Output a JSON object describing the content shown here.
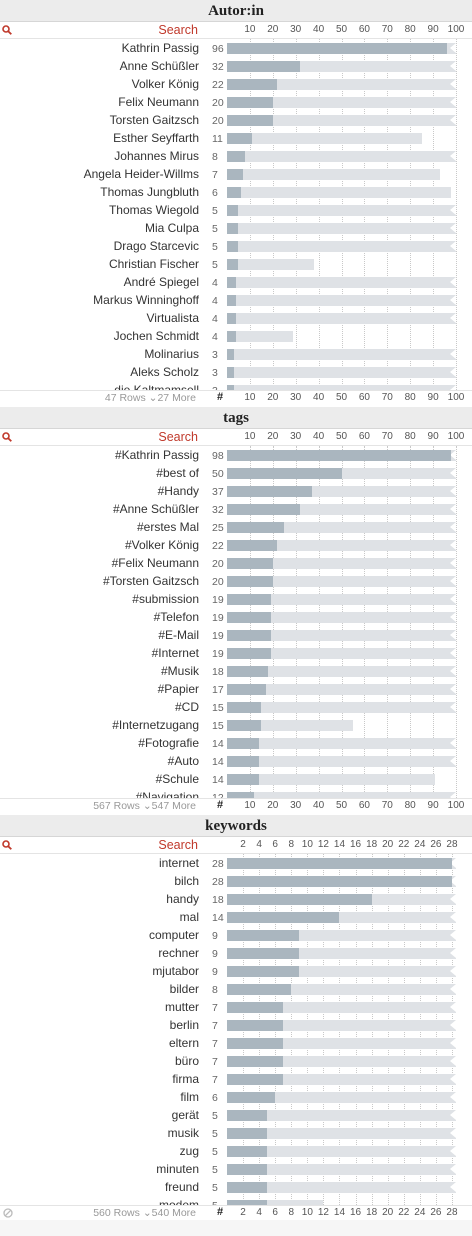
{
  "colors": {
    "search": "#c0392b",
    "bar_fill": "#aab6bf",
    "bar_bg": "#dfe2e6"
  },
  "icons": {
    "search": "search-icon",
    "more": "chevron-down-icon",
    "clear": "clear-filter-icon"
  },
  "panels": [
    {
      "id": "autorin",
      "title": "Autor:in",
      "search_label": "Search",
      "footer_rows": "47 Rows",
      "footer_more": "27 More",
      "hash": "#",
      "axis_max": 100,
      "axis_ticks": [
        "10",
        "20",
        "30",
        "40",
        "50",
        "60",
        "70",
        "80",
        "90",
        "100"
      ],
      "axis_values": [
        10,
        20,
        30,
        40,
        50,
        60,
        70,
        80,
        90,
        100
      ],
      "items": [
        {
          "label": "Kathrin Passig",
          "count": 96,
          "bg": 100
        },
        {
          "label": "Anne Schüßler",
          "count": 32,
          "bg": 100
        },
        {
          "label": "Volker König",
          "count": 22,
          "bg": 100
        },
        {
          "label": "Felix Neumann",
          "count": 20,
          "bg": 100
        },
        {
          "label": "Torsten Gaitzsch",
          "count": 20,
          "bg": 100
        },
        {
          "label": "Esther Seyffarth",
          "count": 11,
          "bg": 85
        },
        {
          "label": "Johannes Mirus",
          "count": 8,
          "bg": 100
        },
        {
          "label": "Angela Heider-Willms",
          "count": 7,
          "bg": 93
        },
        {
          "label": "Thomas Jungbluth",
          "count": 6,
          "bg": 98
        },
        {
          "label": "Thomas Wiegold",
          "count": 5,
          "bg": 100
        },
        {
          "label": "Mia Culpa",
          "count": 5,
          "bg": 100
        },
        {
          "label": "Drago Starcevic",
          "count": 5,
          "bg": 100
        },
        {
          "label": "Christian Fischer",
          "count": 5,
          "bg": 38
        },
        {
          "label": "André Spiegel",
          "count": 4,
          "bg": 100
        },
        {
          "label": "Markus Winninghoff",
          "count": 4,
          "bg": 100
        },
        {
          "label": "Virtualista",
          "count": 4,
          "bg": 100
        },
        {
          "label": "Jochen Schmidt",
          "count": 4,
          "bg": 29
        },
        {
          "label": "Molinarius",
          "count": 3,
          "bg": 100
        },
        {
          "label": "Aleks Scholz",
          "count": 3,
          "bg": 100
        },
        {
          "label": "die Kaltmamsell",
          "count": 3,
          "bg": 100
        }
      ]
    },
    {
      "id": "tags",
      "title": "tags",
      "search_label": "Search",
      "footer_rows": "567 Rows",
      "footer_more": "547 More",
      "hash": "#",
      "axis_max": 100,
      "axis_ticks": [
        "10",
        "20",
        "30",
        "40",
        "50",
        "60",
        "70",
        "80",
        "90",
        "100"
      ],
      "axis_values": [
        10,
        20,
        30,
        40,
        50,
        60,
        70,
        80,
        90,
        100
      ],
      "items": [
        {
          "label": "#Kathrin Passig",
          "count": 98,
          "bg": 100
        },
        {
          "label": "#best of",
          "count": 50,
          "bg": 100
        },
        {
          "label": "#Handy",
          "count": 37,
          "bg": 100
        },
        {
          "label": "#Anne Schüßler",
          "count": 32,
          "bg": 100
        },
        {
          "label": "#erstes Mal",
          "count": 25,
          "bg": 100
        },
        {
          "label": "#Volker König",
          "count": 22,
          "bg": 100
        },
        {
          "label": "#Felix Neumann",
          "count": 20,
          "bg": 100
        },
        {
          "label": "#Torsten Gaitzsch",
          "count": 20,
          "bg": 100
        },
        {
          "label": "#submission",
          "count": 19,
          "bg": 100
        },
        {
          "label": "#Telefon",
          "count": 19,
          "bg": 100
        },
        {
          "label": "#E-Mail",
          "count": 19,
          "bg": 100
        },
        {
          "label": "#Internet",
          "count": 19,
          "bg": 100
        },
        {
          "label": "#Musik",
          "count": 18,
          "bg": 100
        },
        {
          "label": "#Papier",
          "count": 17,
          "bg": 100
        },
        {
          "label": "#CD",
          "count": 15,
          "bg": 100
        },
        {
          "label": "#Internetzugang",
          "count": 15,
          "bg": 55
        },
        {
          "label": "#Fotografie",
          "count": 14,
          "bg": 100
        },
        {
          "label": "#Auto",
          "count": 14,
          "bg": 100
        },
        {
          "label": "#Schule",
          "count": 14,
          "bg": 91
        },
        {
          "label": "#Navigation",
          "count": 12,
          "bg": 100
        }
      ]
    },
    {
      "id": "keywords",
      "title": "keywords",
      "search_label": "Search",
      "footer_rows": "560 Rows",
      "footer_more": "540 More",
      "hash": "#",
      "axis_max": 28.5,
      "axis_ticks": [
        "2",
        "4",
        "6",
        "8",
        "10",
        "12",
        "14",
        "16",
        "18",
        "20",
        "22",
        "24",
        "26",
        "28"
      ],
      "axis_values": [
        2,
        4,
        6,
        8,
        10,
        12,
        14,
        16,
        18,
        20,
        22,
        24,
        26,
        28
      ],
      "items": [
        {
          "label": "internet",
          "count": 28,
          "bg": 100
        },
        {
          "label": "bilch",
          "count": 28,
          "bg": 100
        },
        {
          "label": "handy",
          "count": 18,
          "bg": 100
        },
        {
          "label": "mal",
          "count": 14,
          "bg": 100
        },
        {
          "label": "computer",
          "count": 9,
          "bg": 100
        },
        {
          "label": "rechner",
          "count": 9,
          "bg": 100
        },
        {
          "label": "mjutabor",
          "count": 9,
          "bg": 100
        },
        {
          "label": "bilder",
          "count": 8,
          "bg": 100
        },
        {
          "label": "mutter",
          "count": 7,
          "bg": 100
        },
        {
          "label": "berlin",
          "count": 7,
          "bg": 100
        },
        {
          "label": "eltern",
          "count": 7,
          "bg": 100
        },
        {
          "label": "büro",
          "count": 7,
          "bg": 100
        },
        {
          "label": "firma",
          "count": 7,
          "bg": 100
        },
        {
          "label": "film",
          "count": 6,
          "bg": 100
        },
        {
          "label": "gerät",
          "count": 5,
          "bg": 100
        },
        {
          "label": "musik",
          "count": 5,
          "bg": 100
        },
        {
          "label": "zug",
          "count": 5,
          "bg": 100
        },
        {
          "label": "minuten",
          "count": 5,
          "bg": 100
        },
        {
          "label": "freund",
          "count": 5,
          "bg": 100
        },
        {
          "label": "modem",
          "count": 5,
          "bg": 42
        }
      ]
    }
  ]
}
